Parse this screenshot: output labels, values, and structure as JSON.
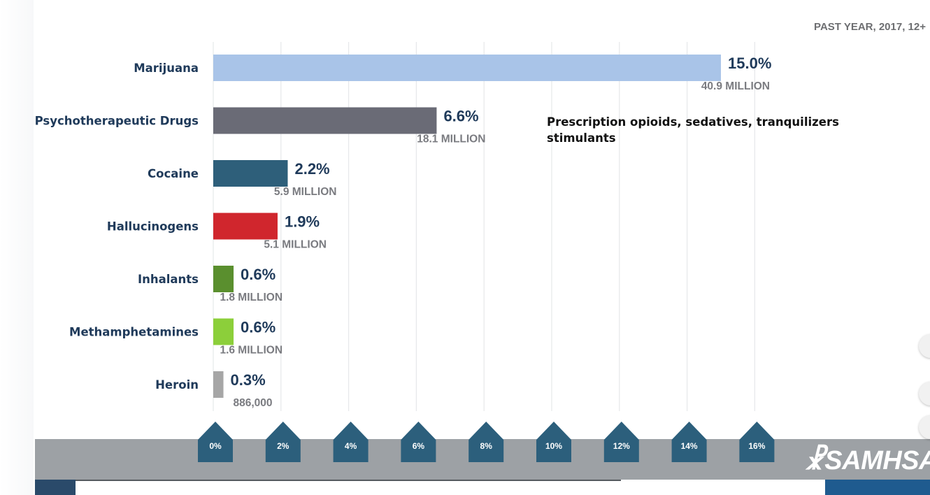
{
  "subtitle": "PAST YEAR, 2017, 12+",
  "annotation": {
    "line1": "Prescription opioids, sedatives, tranquilizers",
    "line2": "stimulants"
  },
  "logo": {
    "text": "SAMHSA"
  },
  "chart_data": {
    "type": "bar",
    "orientation": "horizontal",
    "title": "PAST YEAR, 2017, 12+",
    "categories": [
      "Marijuana",
      "Psychotherapeutic Drugs",
      "Cocaine",
      "Hallucinogens",
      "Inhalants",
      "Methamphetamines",
      "Heroin"
    ],
    "values": [
      15.0,
      6.6,
      2.2,
      1.9,
      0.6,
      0.6,
      0.3
    ],
    "value_labels": [
      "15.0%",
      "6.6%",
      "2.2%",
      "1.9%",
      "0.6%",
      "0.6%",
      "0.3%"
    ],
    "counts": [
      "40.9 MILLION",
      "18.1 MILLION",
      "5.9 MILLION",
      "5.1 MILLION",
      "1.8 MILLION",
      "1.6 MILLION",
      "886,000"
    ],
    "colors": [
      "#a9c4e8",
      "#6a6b76",
      "#2e5f7a",
      "#d0262d",
      "#5a8f2e",
      "#8ccf3a",
      "#a6a6a6"
    ],
    "xlim": [
      0,
      16
    ],
    "xticks": [
      0,
      2,
      4,
      6,
      8,
      10,
      12,
      14,
      16
    ],
    "xtick_labels": [
      "0%",
      "2%",
      "4%",
      "6%",
      "8%",
      "10%",
      "12%",
      "14%",
      "16%"
    ],
    "grid": true,
    "xlabel": "",
    "ylabel": ""
  }
}
